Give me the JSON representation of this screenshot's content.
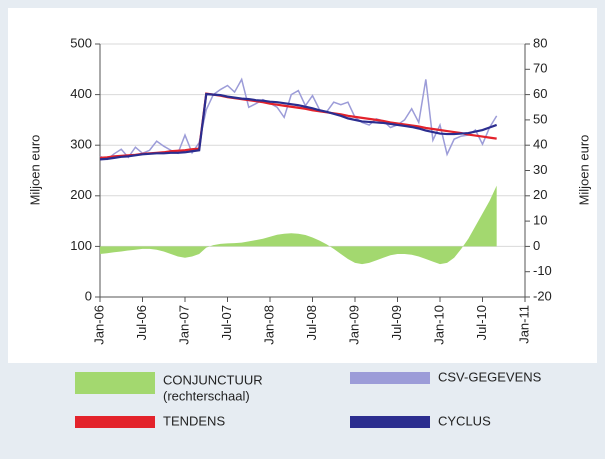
{
  "chart_data": {
    "type": "line",
    "ylabel": "Miljoen euro",
    "y2label": "Miljoen euro",
    "x": [
      0,
      1,
      2,
      3,
      4,
      5,
      6,
      7,
      8,
      9,
      10,
      11,
      12,
      13,
      14,
      15,
      16,
      17,
      18,
      19,
      20,
      21,
      22,
      23,
      24,
      25,
      26,
      27,
      28,
      29,
      30,
      31,
      32,
      33,
      34,
      35,
      36,
      37,
      38,
      39,
      40,
      41,
      42,
      43,
      44,
      45,
      46,
      47,
      48,
      49,
      50,
      51,
      52,
      53,
      54,
      55,
      56
    ],
    "xlim": [
      0,
      60
    ],
    "xticks": [
      {
        "value": 0,
        "label": "Jan-06"
      },
      {
        "value": 6,
        "label": "Jul-06"
      },
      {
        "value": 12,
        "label": "Jan-07"
      },
      {
        "value": 18,
        "label": "Jul-07"
      },
      {
        "value": 24,
        "label": "Jan-08"
      },
      {
        "value": 30,
        "label": "Jul-08"
      },
      {
        "value": 36,
        "label": "Jan-09"
      },
      {
        "value": 42,
        "label": "Jul-09"
      },
      {
        "value": 48,
        "label": "Jan-10"
      },
      {
        "value": 54,
        "label": "Jul-10"
      },
      {
        "value": 60,
        "label": "Jan-11"
      }
    ],
    "ylim": [
      0,
      500
    ],
    "yticks": [
      0,
      100,
      200,
      300,
      400,
      500
    ],
    "y2lim": [
      -20,
      80
    ],
    "y2ticks": [
      -20,
      -10,
      0,
      10,
      20,
      30,
      40,
      50,
      60,
      70,
      80
    ],
    "grid": true,
    "series": [
      {
        "name": "CONJUNCTUUR",
        "legend_note": "(rechterschaal)",
        "kind": "area",
        "axis": "y2",
        "color": "#a3d86f",
        "values": [
          -3,
          -2.7,
          -2.3,
          -2,
          -1.6,
          -1.3,
          -1,
          -1,
          -1.3,
          -2,
          -3,
          -4,
          -4.5,
          -4,
          -3,
          -0.5,
          0.5,
          1,
          1.2,
          1.3,
          1.5,
          2,
          2.5,
          3,
          3.8,
          4.6,
          5,
          5.2,
          5,
          4.5,
          3.5,
          2.3,
          0.8,
          -1,
          -3,
          -5,
          -6.5,
          -7,
          -6.5,
          -5.5,
          -4.5,
          -3.5,
          -3,
          -3,
          -3.3,
          -4,
          -5,
          -6,
          -7,
          -6.5,
          -4.5,
          -1,
          3,
          8,
          13,
          18,
          24
        ]
      },
      {
        "name": "CSV-GEGEVENS",
        "kind": "line",
        "color": "#9c9cd8",
        "values": [
          278,
          272,
          283,
          292,
          276,
          296,
          284,
          290,
          308,
          298,
          290,
          284,
          320,
          285,
          305,
          370,
          400,
          410,
          418,
          405,
          430,
          375,
          382,
          390,
          383,
          375,
          355,
          400,
          408,
          378,
          398,
          370,
          366,
          385,
          380,
          385,
          355,
          345,
          340,
          352,
          348,
          335,
          340,
          350,
          372,
          345,
          430,
          310,
          340,
          282,
          312,
          318,
          320,
          330,
          302,
          335,
          358
        ]
      },
      {
        "name": "TENDENS",
        "kind": "line",
        "color": "#e3222b",
        "values": [
          275,
          276,
          278,
          279,
          280,
          281,
          283,
          284,
          285,
          286,
          288,
          289,
          290,
          292,
          293,
          402,
          400,
          398,
          395,
          393,
          391,
          389,
          387,
          385,
          382,
          380,
          378,
          376,
          374,
          372,
          369,
          367,
          365,
          363,
          361,
          358,
          356,
          354,
          352,
          350,
          348,
          345,
          343,
          341,
          339,
          337,
          334,
          332,
          330,
          328,
          326,
          324,
          321,
          319,
          317,
          315,
          313
        ]
      },
      {
        "name": "CYCLUS",
        "kind": "line",
        "color": "#2b2d8f",
        "values": [
          272,
          273,
          275,
          277,
          278,
          280,
          282,
          283,
          284,
          284,
          285,
          285,
          286,
          288,
          290,
          401,
          400,
          399,
          396,
          394,
          392,
          391,
          389,
          388,
          386,
          385,
          383,
          381,
          379,
          376,
          373,
          369,
          366,
          362,
          358,
          353,
          350,
          347,
          346,
          345,
          344,
          342,
          340,
          338,
          336,
          333,
          329,
          326,
          323,
          322,
          322,
          323,
          324,
          327,
          330,
          335,
          340
        ]
      }
    ]
  }
}
